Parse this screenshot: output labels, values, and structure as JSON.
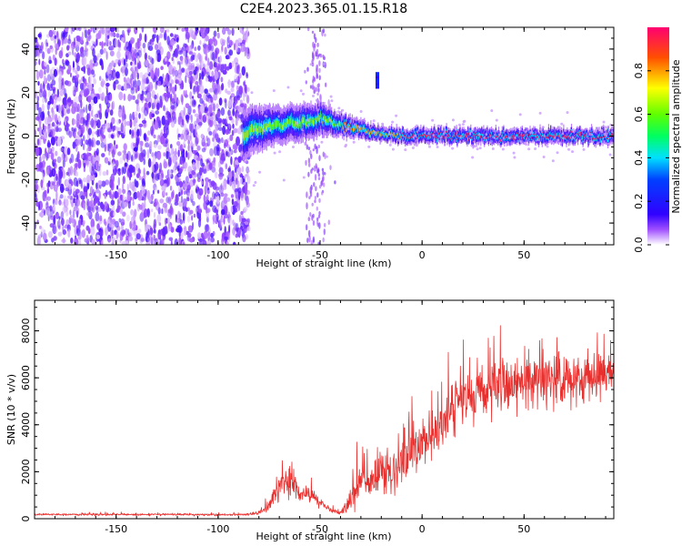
{
  "title": "C2E4.2023.365.01.15.R18",
  "chart_data": [
    {
      "type": "heatmap",
      "xlabel": "Height of straight line (km)",
      "ylabel": "Frequency (Hz)",
      "xlim": [
        -190,
        94
      ],
      "ylim": [
        -50,
        50
      ],
      "xticks": [
        -150,
        -100,
        -50,
        0,
        50
      ],
      "xtick_labels": [
        "-150",
        "-100",
        "-50",
        "0",
        "50"
      ],
      "yticks": [
        -40,
        -20,
        0,
        20,
        40
      ],
      "ytick_labels": [
        "-40",
        "-20",
        "0",
        "20",
        "40"
      ],
      "colorbar": {
        "label": "Normalized spectral amplitude",
        "range": [
          0,
          1
        ],
        "ticks": [
          0.0,
          0.2,
          0.4,
          0.6,
          0.8
        ],
        "tick_labels": [
          "0.0",
          "0.2",
          "0.4",
          "0.6",
          "0.8"
        ],
        "colors": [
          "#ffffff",
          "#8000ff",
          "#0000ff",
          "#00ffff",
          "#00ff00",
          "#ffff00",
          "#ff0000",
          "#ff0080"
        ]
      },
      "noise_region_x": [
        -190,
        -88
      ],
      "ridge": {
        "x": [
          -88,
          -80,
          -70,
          -60,
          -50,
          -40,
          -30,
          -20,
          -10,
          0,
          20,
          40,
          60,
          80,
          94
        ],
        "freq": [
          0,
          4,
          5,
          6,
          8,
          5,
          3,
          1,
          0,
          0,
          0,
          0,
          0,
          0,
          0
        ],
        "width": [
          14,
          12,
          10,
          10,
          9,
          6,
          5,
          4,
          4,
          4,
          4,
          4,
          4,
          4,
          4
        ]
      },
      "isolated_feature": {
        "x": -22,
        "freq": [
          23,
          30
        ]
      }
    },
    {
      "type": "line",
      "xlabel": "Height of straight line (km)",
      "ylabel": "SNR (10 * v/v)",
      "xlim": [
        -190,
        94
      ],
      "ylim": [
        0,
        9300
      ],
      "xticks": [
        -150,
        -100,
        -50,
        0,
        50
      ],
      "xtick_labels": [
        "-150",
        "-100",
        "-50",
        "0",
        "50"
      ],
      "yticks": [
        0,
        2000,
        4000,
        6000,
        8000
      ],
      "ytick_labels": [
        "0",
        "2000",
        "4000",
        "6000",
        "8000"
      ],
      "line_color": "#e8302e",
      "envelope": {
        "x": [
          -190,
          -150,
          -100,
          -85,
          -80,
          -75,
          -70,
          -65,
          -60,
          -55,
          -50,
          -45,
          -40,
          -35,
          -30,
          -25,
          -20,
          -15,
          -10,
          -5,
          0,
          5,
          10,
          15,
          20,
          30,
          40,
          50,
          60,
          70,
          80,
          94
        ],
        "mean": [
          180,
          180,
          170,
          180,
          250,
          500,
          1300,
          1700,
          1000,
          1000,
          700,
          350,
          250,
          800,
          1700,
          1500,
          2100,
          1700,
          2600,
          3000,
          3200,
          3500,
          4000,
          4600,
          5300,
          5500,
          5700,
          5800,
          5800,
          5900,
          6000,
          6100
        ],
        "noise": [
          40,
          40,
          40,
          50,
          80,
          200,
          500,
          600,
          300,
          300,
          200,
          100,
          80,
          500,
          700,
          700,
          900,
          900,
          1000,
          1000,
          1000,
          1000,
          1000,
          1100,
          1100,
          1100,
          1100,
          1100,
          1100,
          1000,
          1000,
          900
        ]
      }
    }
  ]
}
